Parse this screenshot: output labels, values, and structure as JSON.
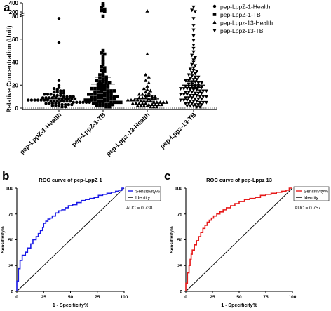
{
  "panels": {
    "a": "a",
    "b": "b",
    "c": "c"
  },
  "chart_data": [
    {
      "id": "a",
      "type": "scatter",
      "ylabel": "Relative Concentration (Unit)",
      "categories": [
        "pep-LppZ-1-Health",
        "pep-LppZ-1-TB",
        "pep-Lppz-13-Health",
        "pep-Lppz-13-TB"
      ],
      "y_ticks": [
        "0",
        "20",
        "40",
        "60",
        "80",
        "200",
        "400"
      ],
      "y_axis_break": [
        80,
        200
      ],
      "legend": [
        {
          "label": "pep-LppZ-1-Health",
          "marker": "circle"
        },
        {
          "label": "pep-LppZ-1-TB",
          "marker": "square"
        },
        {
          "label": "pep-Lppz-13-Health",
          "marker": "triangle-up"
        },
        {
          "label": "pep-Lppz-13-TB",
          "marker": "triangle-down"
        }
      ],
      "legend_position": "top-right",
      "reference_line_y": 0,
      "summary_lines": [
        {
          "mean": 8,
          "sem_low": 7,
          "sem_high": 9
        },
        {
          "mean": 21,
          "sem_low": 15,
          "sem_high": 27
        },
        {
          "mean": 8,
          "sem_low": 6,
          "sem_high": 11
        },
        {
          "mean": 20,
          "sem_low": 18,
          "sem_high": 23
        }
      ],
      "series": [
        {
          "values": [
            78,
            57,
            24,
            20,
            18,
            17,
            16,
            15,
            15,
            14,
            14,
            13,
            13,
            12,
            12,
            12,
            11,
            11,
            11,
            10,
            10,
            10,
            10,
            9,
            9,
            9,
            9,
            9,
            8,
            8,
            8,
            8,
            8,
            8,
            7,
            7,
            7,
            7,
            7,
            7,
            7,
            6,
            6,
            6,
            6,
            6,
            6,
            6,
            5,
            5,
            5,
            5,
            5,
            5,
            4,
            4,
            4,
            4,
            4,
            3,
            3,
            3,
            3,
            2,
            2,
            2,
            1,
            1
          ]
        },
        {
          "values": [
            380,
            340,
            300,
            260,
            230,
            210,
            80,
            50,
            48,
            47,
            45,
            42,
            40,
            38,
            36,
            35,
            33,
            32,
            30,
            29,
            28,
            27,
            26,
            25,
            25,
            24,
            23,
            23,
            22,
            22,
            21,
            21,
            20,
            20,
            19,
            19,
            18,
            18,
            17,
            17,
            17,
            16,
            16,
            15,
            15,
            15,
            14,
            14,
            14,
            13,
            13,
            13,
            12,
            12,
            12,
            11,
            11,
            11,
            10,
            10,
            10,
            10,
            9,
            9,
            9,
            9,
            8,
            8,
            8,
            8,
            7,
            7,
            7,
            7,
            6,
            6,
            6,
            6,
            5,
            5,
            5,
            5,
            4,
            4,
            4,
            4,
            3,
            3,
            3,
            2,
            2,
            2,
            1,
            1
          ]
        },
        {
          "values": [
            220,
            47,
            29,
            27,
            24,
            22,
            19,
            17,
            16,
            15,
            14,
            13,
            12,
            12,
            11,
            11,
            10,
            10,
            9,
            9,
            9,
            8,
            8,
            8,
            7,
            7,
            7,
            7,
            6,
            6,
            6,
            6,
            5,
            5,
            5,
            5,
            5,
            4,
            4,
            4,
            4,
            4,
            3,
            3,
            3,
            3,
            3,
            2,
            2,
            2,
            2,
            1,
            1,
            1
          ]
        },
        {
          "values": [
            310,
            240,
            210,
            78,
            72,
            68,
            63,
            59,
            55,
            52,
            49,
            46,
            44,
            42,
            40,
            38,
            37,
            35,
            34,
            33,
            32,
            31,
            30,
            29,
            28,
            27,
            27,
            26,
            25,
            25,
            24,
            24,
            23,
            23,
            22,
            22,
            21,
            21,
            20,
            20,
            19,
            19,
            19,
            18,
            18,
            18,
            17,
            17,
            17,
            16,
            16,
            16,
            15,
            15,
            15,
            14,
            14,
            14,
            13,
            13,
            13,
            12,
            12,
            12,
            11,
            11,
            11,
            10,
            10,
            10,
            9,
            9,
            9,
            8,
            8,
            8,
            7,
            7,
            7,
            6,
            6,
            6,
            5,
            5,
            5,
            4,
            4,
            4,
            3,
            3,
            3,
            2,
            2,
            2,
            1,
            1
          ]
        }
      ]
    },
    {
      "id": "b",
      "type": "line",
      "title": "ROC curve of pep-LppZ 1",
      "xlabel": "1 - Specificity%",
      "ylabel": "Sensitivity%",
      "xlim": [
        0,
        100
      ],
      "ylim": [
        0,
        100
      ],
      "x_ticks": [
        "0",
        "25",
        "50",
        "75",
        "100"
      ],
      "y_ticks": [
        "0",
        "25",
        "50",
        "75",
        "100"
      ],
      "legend_position": "top-right",
      "auc_text": "AUC = 0.738",
      "series": [
        {
          "name": "Sensitivity%",
          "color": "#1a1ae6",
          "x": [
            0,
            0,
            1.5,
            1.5,
            3,
            3,
            5,
            5,
            8,
            8,
            10,
            10,
            13,
            13,
            15,
            15,
            18,
            18,
            20,
            20,
            22,
            22,
            24,
            24,
            25,
            25,
            27,
            27,
            29,
            29,
            31,
            31,
            33,
            33,
            36,
            36,
            39,
            39,
            42,
            42,
            45,
            45,
            48,
            48,
            52,
            52,
            56,
            56,
            60,
            60,
            64,
            64,
            68,
            68,
            72,
            72,
            76,
            76,
            80,
            80,
            84,
            84,
            88,
            88,
            92,
            92,
            95,
            95,
            98,
            98,
            100
          ],
          "y": [
            0,
            10,
            10,
            22,
            22,
            30,
            30,
            35,
            35,
            38,
            38,
            42,
            42,
            46,
            46,
            50,
            50,
            53,
            53,
            56,
            56,
            59,
            59,
            62,
            62,
            66,
            66,
            68,
            68,
            70,
            70,
            71,
            71,
            73,
            73,
            76,
            76,
            78,
            78,
            79,
            79,
            81,
            81,
            83,
            83,
            84,
            84,
            86,
            86,
            88,
            88,
            89,
            89,
            90,
            90,
            91,
            91,
            93,
            93,
            94,
            94,
            95,
            95,
            96,
            96,
            97,
            97,
            98,
            98,
            100,
            100
          ]
        },
        {
          "name": "Identity",
          "color": "#000000",
          "x": [
            0,
            100
          ],
          "y": [
            0,
            100
          ]
        }
      ]
    },
    {
      "id": "c",
      "type": "line",
      "title": "ROC curve of pep-Lppz 13",
      "xlabel": "1 - Specificity%",
      "ylabel": "Sensitivity%",
      "xlim": [
        0,
        100
      ],
      "ylim": [
        0,
        100
      ],
      "x_ticks": [
        "0",
        "25",
        "50",
        "75",
        "100"
      ],
      "y_ticks": [
        "0",
        "25",
        "50",
        "75",
        "100"
      ],
      "legend_position": "top-right",
      "auc_text": "AUC = 0.757",
      "series": [
        {
          "name": "Sensitivity%",
          "color": "#e61a1a",
          "x": [
            0,
            0,
            1.5,
            1.5,
            3,
            3,
            4,
            4,
            5,
            5,
            6,
            6,
            8,
            8,
            10,
            10,
            12,
            12,
            14,
            14,
            16,
            16,
            18,
            18,
            20,
            20,
            22,
            22,
            24,
            24,
            26,
            26,
            29,
            29,
            32,
            32,
            35,
            35,
            38,
            38,
            42,
            42,
            46,
            46,
            50,
            50,
            55,
            55,
            60,
            60,
            65,
            65,
            70,
            70,
            75,
            75,
            80,
            80,
            85,
            85,
            90,
            90,
            94,
            94,
            97,
            97,
            100
          ],
          "y": [
            0,
            8,
            8,
            18,
            18,
            25,
            25,
            31,
            31,
            36,
            36,
            40,
            40,
            45,
            45,
            49,
            49,
            53,
            53,
            57,
            57,
            61,
            61,
            64,
            64,
            67,
            67,
            69,
            69,
            71,
            71,
            73,
            73,
            75,
            75,
            77,
            77,
            79,
            79,
            81,
            81,
            83,
            83,
            85,
            85,
            87,
            87,
            89,
            89,
            90,
            90,
            91,
            91,
            93,
            93,
            94,
            94,
            95,
            95,
            96,
            96,
            97,
            97,
            98,
            98,
            100,
            100
          ]
        },
        {
          "name": "Identity",
          "color": "#000000",
          "x": [
            0,
            100
          ],
          "y": [
            0,
            100
          ]
        }
      ]
    }
  ]
}
